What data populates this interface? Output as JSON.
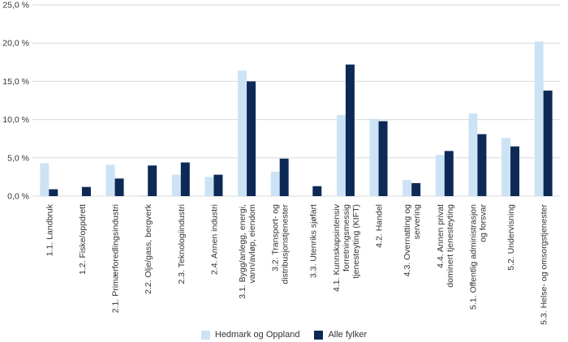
{
  "chart_data": {
    "type": "bar",
    "categories": [
      [
        "1.1. Landbruk"
      ],
      [
        "1.2. Fiske/oppdrett"
      ],
      [
        "2.1. Primærforedlingsindustri"
      ],
      [
        "2.2. Olje/gass, bergverk"
      ],
      [
        "2.3. Teknologiindustri"
      ],
      [
        "2.4. Annen industri"
      ],
      [
        "3.1. Bygg/anlegg, energi,",
        "vann/avløp, eiendom"
      ],
      [
        "3.2. Transport- og",
        "distribusjonstjenester"
      ],
      [
        "3.3. Utenriks sjøfart"
      ],
      [
        "4.1. Kunnskapsintensiv",
        "forretningsmessig",
        "tjenesteyting (KIFT)"
      ],
      [
        "4.2. Handel"
      ],
      [
        "4.3. Overnatting og",
        "servering"
      ],
      [
        "4.4. Annen privat",
        "dominert tjenesteyting"
      ],
      [
        "5.1. Offentlig administrasjon",
        "og forsvar"
      ],
      [
        "5.2. Undervisning"
      ],
      [
        "5.3. Helse- og omsorgstjenester"
      ]
    ],
    "series": [
      {
        "name": "Hedmark og Oppland",
        "color": "#cce3f5",
        "values": [
          4.3,
          0.0,
          4.1,
          0.1,
          2.8,
          2.5,
          16.4,
          3.2,
          0.0,
          10.6,
          10.1,
          2.1,
          5.4,
          10.8,
          7.6,
          20.2
        ]
      },
      {
        "name": "Alle fylker",
        "color": "#0d2a56",
        "values": [
          0.9,
          1.2,
          2.3,
          4.0,
          4.4,
          2.8,
          15.0,
          4.9,
          1.3,
          17.2,
          9.8,
          1.7,
          5.9,
          8.1,
          6.5,
          13.8
        ]
      }
    ],
    "yticks": [
      "0,0 %",
      "5,0 %",
      "10,0 %",
      "15,0 %",
      "20,0 %",
      "25,0 %"
    ],
    "ylim": [
      0,
      25
    ],
    "grid": true,
    "legend_position": "bottom"
  }
}
